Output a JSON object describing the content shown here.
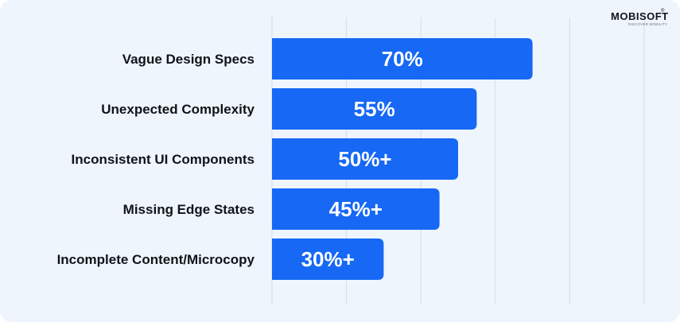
{
  "brand": {
    "name": "MOBISOFT",
    "tagline": "DISCOVER MOBILITY",
    "trademark": "®",
    "bar_color": "#1668f5",
    "background": "#eef5fd",
    "grid_color": "#d6dce4"
  },
  "chart_data": {
    "type": "bar",
    "orientation": "horizontal",
    "categories": [
      "Vague Design Specs",
      "Unexpected Complexity",
      "Inconsistent UI Components",
      "Missing Edge States",
      "Incomplete Content/Microcopy"
    ],
    "values": [
      70,
      55,
      50,
      45,
      30
    ],
    "value_labels": [
      "70%",
      "55%",
      "50%+",
      "45%+",
      "30%+"
    ],
    "xlim": [
      0,
      100
    ],
    "grid": true,
    "legend": "none",
    "title": "",
    "xlabel": "",
    "ylabel": ""
  }
}
